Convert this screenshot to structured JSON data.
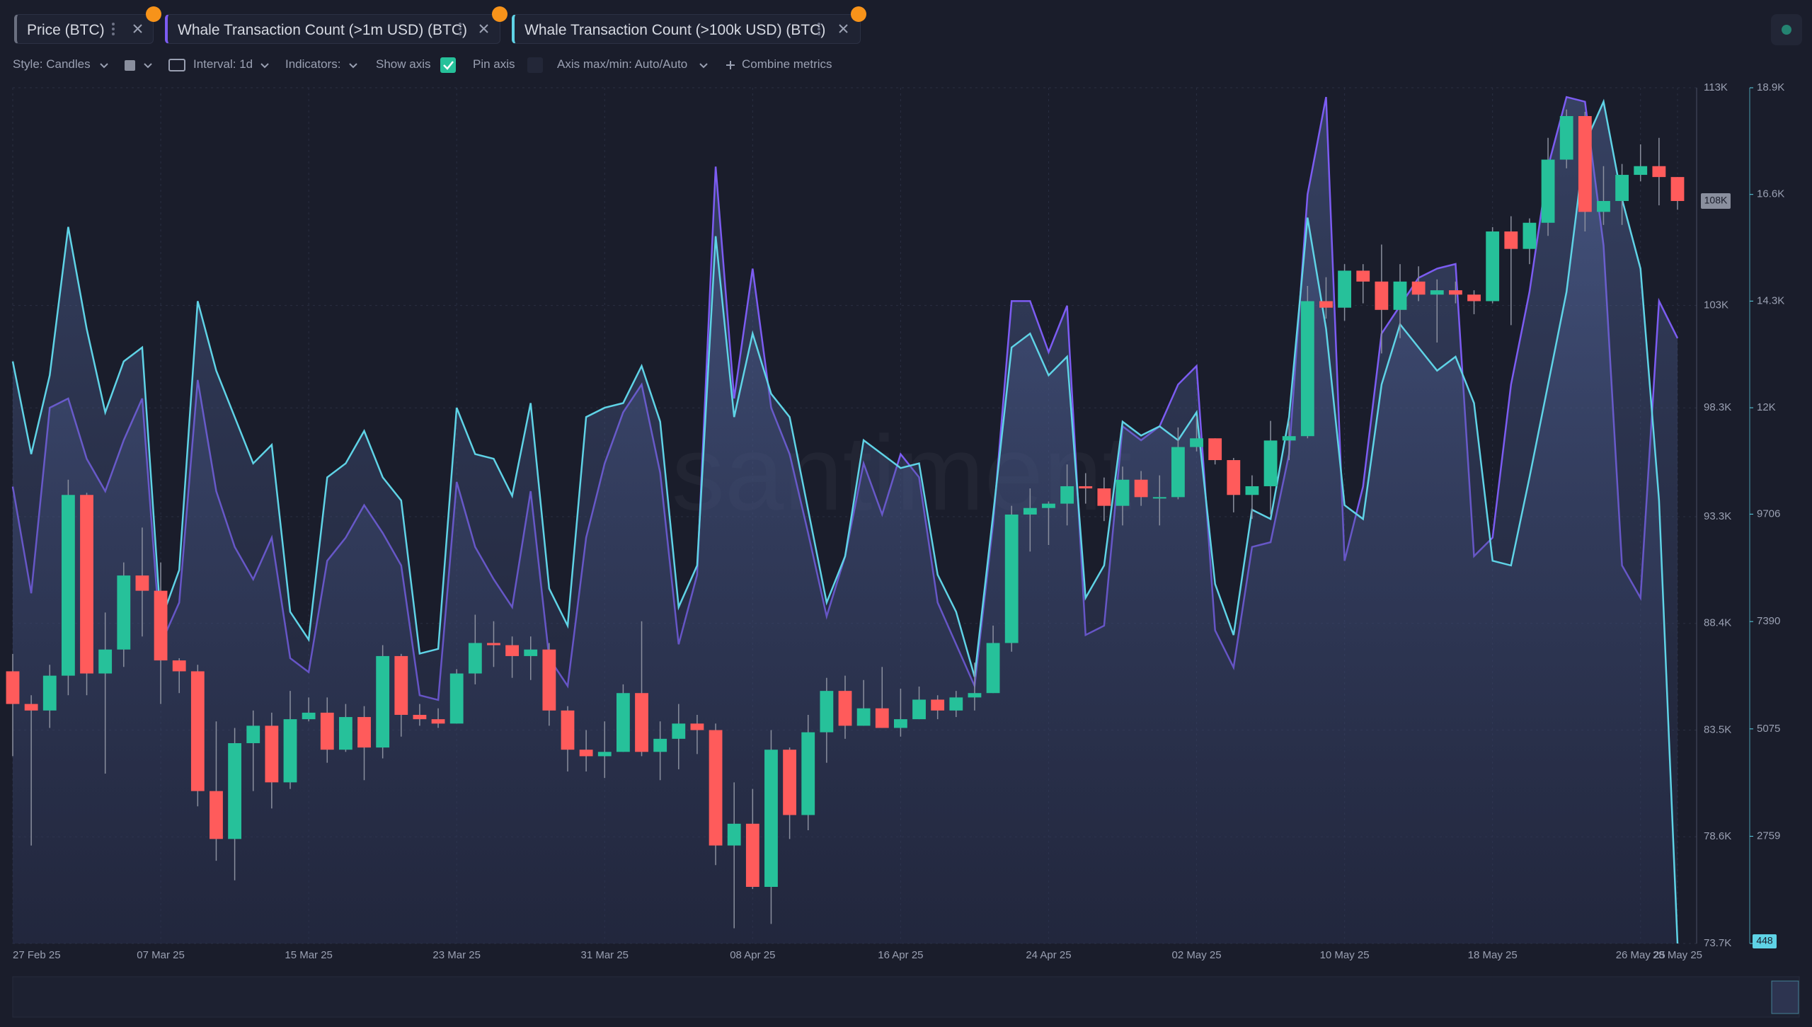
{
  "toolbar": {
    "style": "Style: Candles",
    "interval": "Interval: 1d",
    "indicators": "Indicators:",
    "show_axis": "Show axis",
    "pin_axis": "Pin axis",
    "axis_range": "Axis max/min: Auto/Auto",
    "combine": "Combine metrics"
  },
  "chart_data": {
    "type": "candlestick",
    "watermark": "santiment",
    "grid": true,
    "categories": [
      "27 Feb 25",
      null,
      null,
      null,
      null,
      null,
      null,
      null,
      "07 Mar 25",
      null,
      null,
      null,
      null,
      null,
      null,
      null,
      "15 Mar 25",
      null,
      null,
      null,
      null,
      null,
      null,
      null,
      "23 Mar 25",
      null,
      null,
      null,
      null,
      null,
      null,
      null,
      "31 Mar 25",
      null,
      null,
      null,
      null,
      null,
      null,
      null,
      "08 Apr 25",
      null,
      null,
      null,
      null,
      null,
      null,
      null,
      "16 Apr 25",
      null,
      null,
      null,
      null,
      null,
      null,
      null,
      "24 Apr 25",
      null,
      null,
      null,
      null,
      null,
      null,
      null,
      "02 May 25",
      null,
      null,
      null,
      null,
      null,
      null,
      null,
      "10 May 25",
      null,
      null,
      null,
      null,
      null,
      null,
      null,
      "18 May 25",
      null,
      null,
      null,
      null,
      null,
      null,
      null,
      "26 May 25",
      null,
      "28 May 25"
    ],
    "ylim": [
      73700,
      113000
    ],
    "yticks": [
      {
        "value": 73700,
        "label": "73.7K"
      },
      {
        "value": 78600,
        "label": "78.6K"
      },
      {
        "value": 83500,
        "label": "83.5K"
      },
      {
        "value": 88400,
        "label": "88.4K"
      },
      {
        "value": 93300,
        "label": "93.3K"
      },
      {
        "value": 98300,
        "label": "98.3K"
      },
      {
        "value": 103000,
        "label": "103K"
      },
      {
        "value": 113000,
        "label": "113K"
      }
    ],
    "y2lim": [
      448,
      18900
    ],
    "y2ticks": [
      448,
      2759,
      5075,
      7390,
      9706,
      {
        "value": 12000,
        "label": "12K"
      },
      {
        "value": 14300,
        "label": "14.3K"
      },
      {
        "value": 16600,
        "label": "16.6K"
      },
      {
        "value": 18900,
        "label": "18.9K"
      }
    ],
    "series": [
      {
        "name": "Price (BTC)",
        "type": "candlestick",
        "up_color": "#26c19a",
        "down_color": "#ff5b5b",
        "last_label": "108K",
        "open": [
          86200,
          84700,
          84400,
          86000,
          94300,
          86100,
          87200,
          90600,
          89900,
          86700,
          86200,
          80700,
          78500,
          82900,
          83700,
          81100,
          84000,
          84300,
          82600,
          84100,
          82700,
          86900,
          84200,
          84000,
          83800,
          86100,
          87500,
          87400,
          86900,
          87200,
          84400,
          82600,
          82300,
          82500,
          85200,
          82500,
          83100,
          83800,
          83500,
          78200,
          79200,
          76300,
          82600,
          79600,
          83400,
          85300,
          83700,
          84500,
          83600,
          84000,
          84900,
          84400,
          85000,
          85200,
          87500,
          93400,
          93700,
          93900,
          94700,
          94600,
          93800,
          95000,
          94200,
          94200,
          96500,
          96900,
          95900,
          94300,
          94700,
          96800,
          97000,
          103200,
          102900,
          104600,
          104100,
          102800,
          104100,
          103500,
          103700,
          103500,
          103200,
          106400,
          105600,
          106800,
          109700,
          111700,
          107300,
          107800,
          109000,
          109400,
          108900
        ],
        "high": [
          87000,
          85100,
          86500,
          95000,
          94400,
          88900,
          91200,
          92800,
          91200,
          86800,
          86500,
          83900,
          83600,
          84400,
          84300,
          85300,
          85000,
          85000,
          84700,
          84600,
          87400,
          87000,
          84700,
          84500,
          86300,
          88800,
          88500,
          87800,
          87800,
          87500,
          84600,
          83500,
          83900,
          85600,
          88500,
          83900,
          84700,
          84200,
          83800,
          81100,
          80800,
          83500,
          82700,
          84200,
          85900,
          86000,
          85800,
          86400,
          85400,
          85500,
          85100,
          85300,
          86600,
          88300,
          93800,
          94600,
          94000,
          95700,
          95300,
          95100,
          95600,
          95400,
          95200,
          97400,
          97900,
          96900,
          96000,
          95200,
          97700,
          97700,
          103900,
          104300,
          104900,
          104900,
          105800,
          104900,
          104800,
          104200,
          104100,
          103700,
          106600,
          107100,
          107000,
          110700,
          112000,
          111900,
          109400,
          109500,
          110400,
          110700,
          108900
        ],
        "low": [
          82300,
          78200,
          83600,
          85100,
          85100,
          81500,
          86400,
          87800,
          84700,
          85200,
          80000,
          77500,
          76600,
          80700,
          79900,
          80800,
          83900,
          82000,
          82500,
          81200,
          82200,
          83200,
          83700,
          83600,
          83800,
          85600,
          86400,
          85900,
          85800,
          83700,
          81600,
          81600,
          81300,
          82500,
          82300,
          81200,
          81700,
          82400,
          77300,
          74400,
          76200,
          74600,
          78500,
          78900,
          82000,
          83100,
          83700,
          83600,
          83200,
          84000,
          84000,
          84100,
          84400,
          85200,
          87100,
          91700,
          92000,
          92900,
          93900,
          93100,
          92900,
          93800,
          92900,
          94100,
          96300,
          95700,
          93500,
          93200,
          93400,
          95900,
          96900,
          102400,
          102300,
          103100,
          100800,
          101500,
          103200,
          101300,
          103100,
          102600,
          103100,
          102100,
          104900,
          106200,
          109300,
          106400,
          106700,
          106700,
          108700,
          107600,
          107400
        ],
        "close": [
          84700,
          84400,
          86000,
          94300,
          86100,
          87200,
          90600,
          89900,
          86700,
          86200,
          80700,
          78500,
          82900,
          83700,
          81100,
          84000,
          84300,
          82600,
          84100,
          82700,
          86900,
          84200,
          84000,
          83800,
          86100,
          87500,
          87400,
          86900,
          87200,
          84400,
          82600,
          82300,
          82500,
          85200,
          82500,
          83100,
          83800,
          83500,
          78200,
          79200,
          76300,
          82600,
          79600,
          83400,
          85300,
          83700,
          84500,
          83600,
          84000,
          84900,
          84400,
          85000,
          85200,
          87500,
          93400,
          93700,
          93900,
          94700,
          94600,
          93800,
          95000,
          94200,
          94200,
          96500,
          96900,
          95900,
          94300,
          94700,
          96800,
          97000,
          103200,
          102900,
          104600,
          104100,
          102800,
          104100,
          103500,
          103700,
          103500,
          103200,
          106400,
          105600,
          106800,
          109700,
          111700,
          107300,
          107800,
          109000,
          109400,
          108900,
          107800
        ]
      },
      {
        "name": "Whale Transaction Count (>1m USD) (BTC)",
        "type": "area",
        "axis": "y2",
        "color": "#7c5cf2",
        "values": [
          10300,
          8000,
          12000,
          12200,
          10900,
          10200,
          11300,
          12200,
          6900,
          7800,
          12600,
          10200,
          9000,
          8300,
          9200,
          6600,
          6300,
          8700,
          9200,
          9900,
          9300,
          8600,
          5800,
          5700,
          10400,
          9000,
          8300,
          7700,
          10200,
          6600,
          6000,
          9200,
          10800,
          11900,
          12500,
          10600,
          6900,
          8400,
          17200,
          12200,
          15000,
          12000,
          11000,
          9300,
          7500,
          8800,
          10800,
          9700,
          11000,
          10500,
          7800,
          6900,
          6000,
          9500,
          14300,
          14300,
          13200,
          14200,
          7100,
          7300,
          11600,
          11300,
          11600,
          12500,
          12900,
          7200,
          6400,
          9000,
          9100,
          11000,
          16600,
          18700,
          8700,
          10300,
          13600,
          14200,
          14800,
          15000,
          15100,
          8800,
          9200,
          12500,
          14500,
          17200,
          18700,
          18600,
          15500,
          8600,
          7900,
          14300,
          13500
        ]
      },
      {
        "name": "Whale Transaction Count (>100k USD) (BTC)",
        "type": "area",
        "axis": "y2",
        "color": "#5fd3e6",
        "values": [
          13000,
          11000,
          12700,
          15900,
          13700,
          11900,
          13000,
          13300,
          7400,
          8500,
          14300,
          12800,
          11800,
          10800,
          11200,
          7600,
          7000,
          10500,
          10800,
          11500,
          10500,
          10000,
          6700,
          6800,
          12000,
          11000,
          10900,
          10100,
          12100,
          8100,
          7300,
          11800,
          12000,
          12100,
          12900,
          11700,
          7700,
          8600,
          15700,
          11800,
          13600,
          12300,
          11800,
          9800,
          7800,
          8800,
          11300,
          11000,
          10700,
          10800,
          8400,
          7600,
          6200,
          9700,
          13300,
          13600,
          12700,
          13100,
          7900,
          8600,
          11700,
          11400,
          11600,
          11300,
          11900,
          8200,
          7100,
          9800,
          9600,
          11800,
          16100,
          13700,
          9900,
          9600,
          12500,
          13800,
          13300,
          12800,
          13100,
          12100,
          8700,
          8600,
          10500,
          12500,
          14500,
          17700,
          18600,
          16500,
          15000,
          10000,
          448
        ]
      }
    ]
  }
}
